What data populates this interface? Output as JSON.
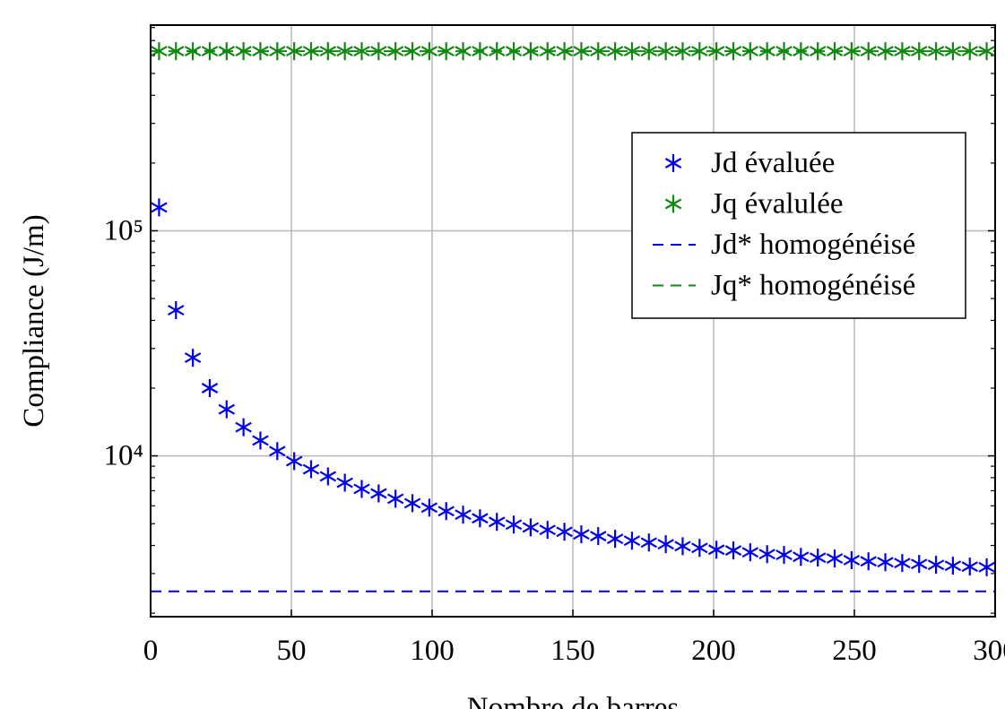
{
  "chart_data": {
    "type": "scatter",
    "x_label": "Nombre de barres",
    "y_label": "Compliance (J/m)",
    "x": [
      3,
      9,
      15,
      21,
      27,
      33,
      39,
      45,
      51,
      57,
      63,
      69,
      75,
      81,
      87,
      93,
      99,
      105,
      111,
      117,
      123,
      129,
      135,
      141,
      147,
      153,
      159,
      165,
      171,
      177,
      183,
      189,
      195,
      201,
      207,
      213,
      219,
      225,
      231,
      237,
      243,
      249,
      255,
      261,
      267,
      273,
      279,
      285,
      291,
      297
    ],
    "series": [
      {
        "name": "Jd évaluée",
        "color": "#0000ee",
        "values": [
          127000,
          44400,
          27300,
          20000,
          16100,
          13400,
          11700,
          10500,
          9470,
          8720,
          8110,
          7600,
          7130,
          6810,
          6450,
          6160,
          5890,
          5680,
          5480,
          5280,
          5090,
          4950,
          4810,
          4690,
          4600,
          4480,
          4400,
          4280,
          4200,
          4120,
          4050,
          3970,
          3900,
          3830,
          3800,
          3730,
          3660,
          3630,
          3560,
          3530,
          3500,
          3440,
          3400,
          3370,
          3340,
          3310,
          3280,
          3250,
          3220,
          3200
        ]
      },
      {
        "name": "Jq évalulée",
        "color": "#118811",
        "values": [
          628000,
          628000,
          628000,
          628000,
          628000,
          628000,
          628000,
          628000,
          628000,
          628000,
          628000,
          628000,
          628000,
          628000,
          628000,
          628000,
          628000,
          628000,
          628000,
          628000,
          628000,
          628000,
          628000,
          628000,
          628000,
          628000,
          628000,
          628000,
          628000,
          628000,
          628000,
          628000,
          628000,
          628000,
          628000,
          628000,
          628000,
          628000,
          628000,
          628000,
          628000,
          628000,
          628000,
          628000,
          628000,
          628000,
          628000,
          628000,
          628000,
          628000
        ]
      },
      {
        "name": "Jd* homogénéisé",
        "color": "#0000ee",
        "style": "dashed",
        "value": 2500
      },
      {
        "name": "Jq* homogénéisé",
        "color": "#118811",
        "style": "dashed",
        "value": 628000
      }
    ],
    "xlim": [
      0,
      300
    ],
    "xticks": [
      0,
      50,
      100,
      150,
      200,
      250,
      300
    ],
    "ylim": [
      1930,
      820000
    ],
    "y_scale": "log",
    "yticks": [
      {
        "value": 10000,
        "label": "10⁴"
      },
      {
        "value": 100000,
        "label": "10⁵"
      }
    ],
    "yminorticks": [
      2000,
      3000,
      4000,
      5000,
      6000,
      7000,
      8000,
      9000,
      20000,
      30000,
      40000,
      50000,
      60000,
      70000,
      80000,
      90000,
      200000,
      300000,
      400000,
      500000,
      600000,
      700000,
      800000
    ],
    "grid": true
  }
}
